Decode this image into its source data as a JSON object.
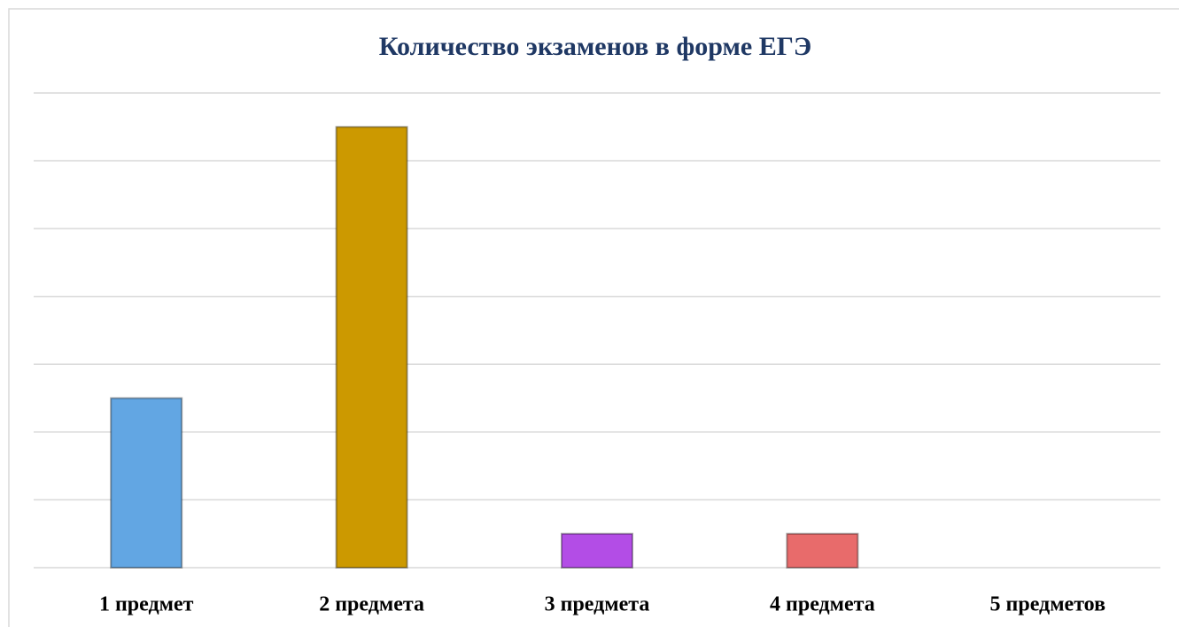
{
  "chart_data": {
    "type": "bar",
    "title": "Количество экзаменов в форме ЕГЭ",
    "categories": [
      "1 предмет",
      "2 предмета",
      "3 предмета",
      "4 предмета",
      "5 предметов"
    ],
    "values": [
      2.5,
      6.5,
      0.5,
      0.5,
      0
    ],
    "colors": [
      "#62a6e3",
      "#cc9900",
      "#b34de6",
      "#e86b6b",
      "#70ad47"
    ],
    "ylim": [
      0,
      7
    ],
    "yticks": [
      0,
      1,
      2,
      3,
      4,
      5,
      6,
      7
    ],
    "grid": true
  }
}
